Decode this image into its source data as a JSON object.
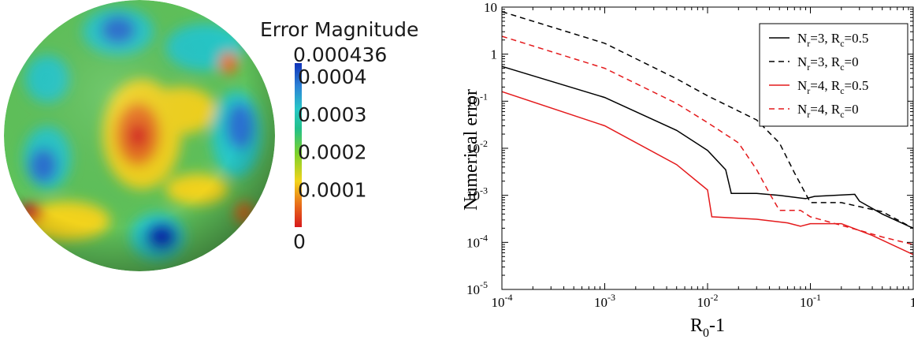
{
  "colors": {
    "cmap": [
      "#d7191c",
      "#e8701a",
      "#f2d31b",
      "#7bd12c",
      "#22c08a",
      "#28c7c7",
      "#2c82d6",
      "#1032b8"
    ],
    "series": [
      "#000000",
      "#000000",
      "#e41a1c",
      "#e41a1c"
    ]
  },
  "sphere": {
    "colorbar": {
      "title": "Error Magnitude",
      "max_label": "0.000436",
      "min_label": "0",
      "range": [
        0,
        0.000436
      ],
      "tick_labels": [
        "0.0004",
        "0.0003",
        "0.0002",
        "0.0001"
      ],
      "tick_values": [
        0.0004,
        0.0003,
        0.0002,
        0.0001
      ]
    }
  },
  "chart_data": {
    "type": "line",
    "title": "",
    "xlabel": {
      "base": "R",
      "sub": "0",
      "tail": "-1"
    },
    "ylabel": "Numerical error",
    "xscale": "log",
    "yscale": "log",
    "xlim": [
      0.0001,
      1
    ],
    "ylim": [
      1e-05,
      10
    ],
    "x_ticks": [
      0.0001,
      0.001,
      0.01,
      0.1,
      1
    ],
    "x_tick_labels": [
      [
        "10",
        "-4"
      ],
      [
        "10",
        "-3"
      ],
      [
        "10",
        "-2"
      ],
      [
        "10",
        "-1"
      ],
      [
        "1",
        ""
      ]
    ],
    "y_ticks": [
      10,
      1,
      0.1,
      0.01,
      0.001,
      0.0001,
      1e-05
    ],
    "y_tick_labels": [
      [
        "10",
        ""
      ],
      [
        "1",
        ""
      ],
      [
        "10",
        "-1"
      ],
      [
        "10",
        "-2"
      ],
      [
        "10",
        "-3"
      ],
      [
        "10",
        "-4"
      ],
      [
        "10",
        "-5"
      ]
    ],
    "legend_position": "top-right",
    "series": [
      {
        "name": [
          "N",
          "r",
          "=3, R",
          "c",
          "=0.5"
        ],
        "dash": "solid",
        "points": [
          [
            0.0001,
            0.55
          ],
          [
            0.001,
            0.12
          ],
          [
            0.005,
            0.024
          ],
          [
            0.01,
            0.009
          ],
          [
            0.015,
            0.0035
          ],
          [
            0.017,
            0.0011
          ],
          [
            0.03,
            0.0011
          ],
          [
            0.05,
            0.001
          ],
          [
            0.09,
            0.00085
          ],
          [
            0.11,
            0.00095
          ],
          [
            0.27,
            0.00105
          ],
          [
            0.3,
            0.00075
          ],
          [
            0.5,
            0.0004
          ],
          [
            1,
            0.0002
          ]
        ]
      },
      {
        "name": [
          "N",
          "r",
          "=3, R",
          "c",
          "=0"
        ],
        "dash": "dashed",
        "points": [
          [
            0.0001,
            8
          ],
          [
            0.001,
            1.7
          ],
          [
            0.005,
            0.3
          ],
          [
            0.01,
            0.13
          ],
          [
            0.03,
            0.04
          ],
          [
            0.05,
            0.013
          ],
          [
            0.07,
            0.003
          ],
          [
            0.1,
            0.0007
          ],
          [
            0.2,
            0.0007
          ],
          [
            0.5,
            0.00045
          ],
          [
            1,
            0.0002
          ]
        ]
      },
      {
        "name": [
          "N",
          "r",
          "=4, R",
          "c",
          "=0.5"
        ],
        "dash": "solid",
        "points": [
          [
            0.0001,
            0.16
          ],
          [
            0.001,
            0.03
          ],
          [
            0.005,
            0.0045
          ],
          [
            0.01,
            0.0013
          ],
          [
            0.011,
            0.00035
          ],
          [
            0.03,
            0.00031
          ],
          [
            0.06,
            0.00026
          ],
          [
            0.08,
            0.00022
          ],
          [
            0.1,
            0.00025
          ],
          [
            0.2,
            0.00025
          ],
          [
            0.4,
            0.00014
          ],
          [
            1,
            5.5e-05
          ]
        ]
      },
      {
        "name": [
          "N",
          "r",
          "=4, R",
          "c",
          "=0"
        ],
        "dash": "dashed",
        "points": [
          [
            0.0001,
            2.4
          ],
          [
            0.001,
            0.5
          ],
          [
            0.005,
            0.09
          ],
          [
            0.01,
            0.035
          ],
          [
            0.02,
            0.013
          ],
          [
            0.03,
            0.0035
          ],
          [
            0.04,
            0.0011
          ],
          [
            0.05,
            0.00048
          ],
          [
            0.08,
            0.00048
          ],
          [
            0.1,
            0.00035
          ],
          [
            0.3,
            0.00018
          ],
          [
            0.5,
            0.00013
          ],
          [
            1,
            9e-05
          ]
        ]
      }
    ]
  }
}
